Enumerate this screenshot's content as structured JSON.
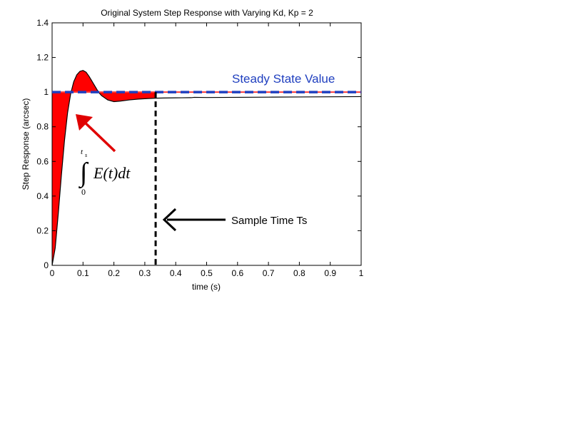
{
  "chart_data": {
    "type": "line",
    "title": "Original System Step Response with Varying Kd, Kp = 2",
    "xlabel": "time (s)",
    "ylabel": "Step Response (arcsec)",
    "xlim": [
      0,
      1
    ],
    "ylim": [
      0,
      1.4
    ],
    "xticks": [
      0,
      0.1,
      0.2,
      0.3,
      0.4,
      0.5,
      0.6,
      0.7,
      0.8,
      0.9,
      1
    ],
    "yticks": [
      0,
      0.2,
      0.4,
      0.6,
      0.8,
      1,
      1.2,
      1.4
    ],
    "xtick_labels": [
      "0",
      "0.1",
      "0.2",
      "0.3",
      "0.4",
      "0.5",
      "0.6",
      "0.7",
      "0.8",
      "0.9",
      "1"
    ],
    "ytick_labels": [
      "0",
      "0.2",
      "0.4",
      "0.6",
      "0.8",
      "1",
      "1.2",
      "1.4"
    ],
    "grid": false,
    "series": [
      {
        "x": [
          0,
          0.01,
          0.02,
          0.03,
          0.04,
          0.05,
          0.06,
          0.07,
          0.08,
          0.09,
          0.1,
          0.11,
          0.12,
          0.13,
          0.14,
          0.15,
          0.16,
          0.18,
          0.2,
          0.22,
          0.25,
          0.28,
          0.31,
          0.335,
          0.36,
          0.4,
          0.45,
          0.46,
          0.5,
          0.6,
          0.7,
          0.8,
          0.9,
          1
        ],
        "y": [
          0,
          0.1,
          0.3,
          0.52,
          0.72,
          0.88,
          0.99,
          1.06,
          1.1,
          1.12,
          1.125,
          1.115,
          1.09,
          1.06,
          1.03,
          1.0,
          0.98,
          0.955,
          0.945,
          0.948,
          0.955,
          0.96,
          0.963,
          0.965,
          0.966,
          0.967,
          0.968,
          0.97,
          0.969,
          0.97,
          0.971,
          0.972,
          0.973,
          0.974
        ],
        "color": "#000000"
      }
    ],
    "steady_state": {
      "value": 1,
      "label": "Steady State Value",
      "color": "#1f3fbf",
      "underlay_color": "#ff3b3b"
    },
    "error_area": {
      "x_end": 0.335,
      "fill": "#ff0000"
    },
    "sample_time_line": {
      "x": 0.335,
      "style": "dashed",
      "color": "#000000"
    },
    "annotations": {
      "sample_time_label": "Sample Time Ts",
      "integral": {
        "upper_limit": "t",
        "upper_sub": "s",
        "lower_limit": "0",
        "sign": "∫",
        "body": "E(t)dt"
      }
    },
    "arrow_colors": {
      "red_arrow": "#e00000",
      "black_arrow": "#000000"
    }
  }
}
